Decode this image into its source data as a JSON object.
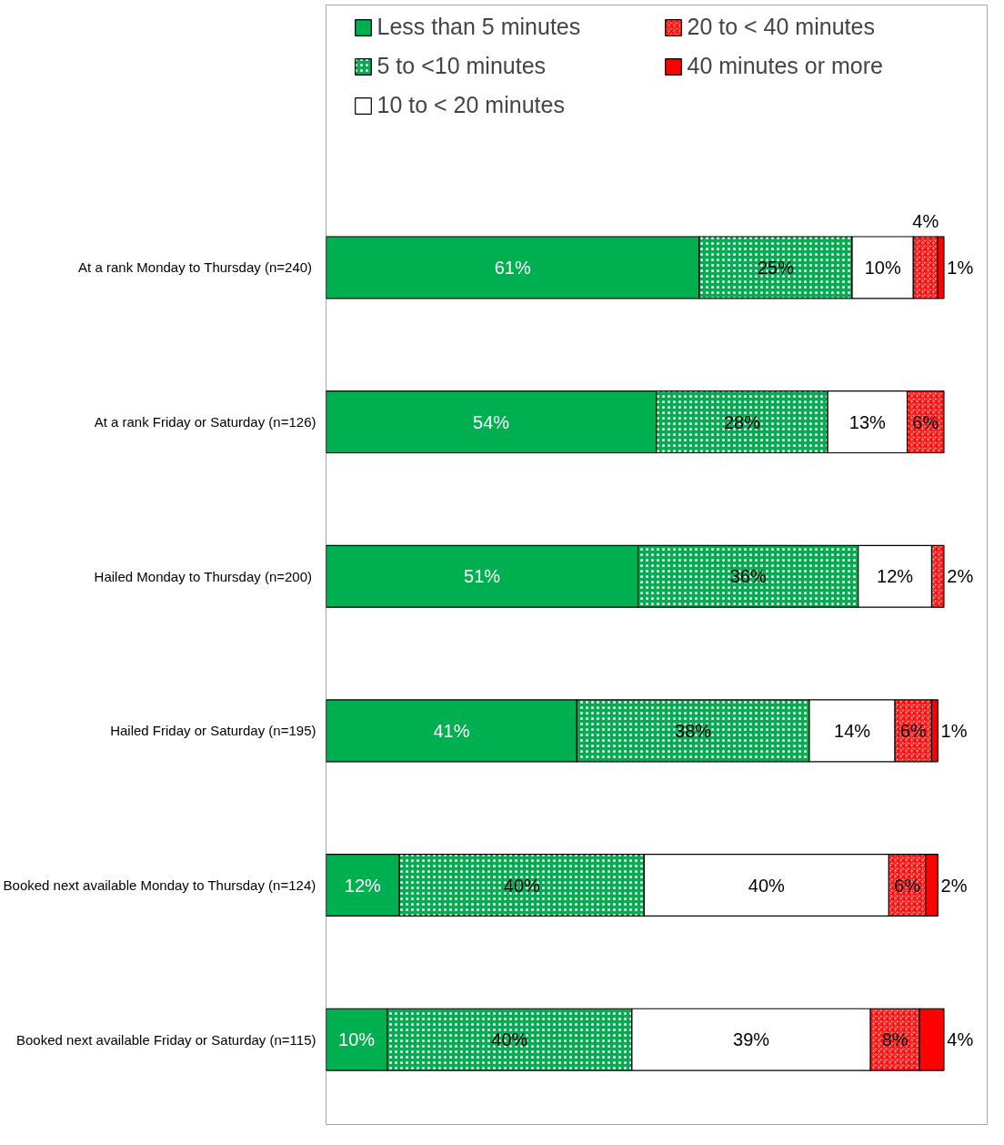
{
  "chart_data": {
    "type": "bar",
    "orientation": "horizontal",
    "stacked": true,
    "legend": "top",
    "grid": false,
    "categories": [
      "At a rank  Monday to Thursday (n=240)",
      "At a rank Friday or Saturday (n=126)",
      "Hailed  Monday to Thursday (n=200)",
      "Hailed Friday or Saturday (n=195)",
      "Booked next available Monday to Thursday (n=124)",
      "Booked next available Friday or Saturday (n=115)"
    ],
    "series": [
      {
        "name": "Less than 5 minutes",
        "color": "#00b050",
        "values": [
          61,
          54,
          51,
          41,
          12,
          10
        ],
        "value_labels": [
          "61%",
          "54%",
          "51%",
          "41%",
          "12%",
          "10%"
        ]
      },
      {
        "name": "5 to <10 minutes",
        "color": "#00b050",
        "values": [
          25,
          28,
          36,
          38,
          40,
          40
        ],
        "value_labels": [
          "25%",
          "28%",
          "36%",
          "38%",
          "40%",
          "40%"
        ]
      },
      {
        "name": "10 to < 20 minutes",
        "color": "#ffffff",
        "values": [
          10,
          13,
          12,
          14,
          40,
          39
        ],
        "value_labels": [
          "10%",
          "13%",
          "12%",
          "14%",
          "40%",
          "39%"
        ]
      },
      {
        "name": "20 to < 40 minutes",
        "color": "#ff9999",
        "values": [
          4,
          6,
          2,
          6,
          6,
          8
        ],
        "value_labels": [
          "4%",
          "6%",
          "2%",
          "6%",
          "6%",
          "8%"
        ]
      },
      {
        "name": "40 minutes or more",
        "color": "#ff0000",
        "values": [
          1,
          null,
          null,
          1,
          2,
          4
        ],
        "value_labels": [
          "1%",
          null,
          null,
          "1%",
          "2%",
          "4%"
        ]
      }
    ]
  }
}
